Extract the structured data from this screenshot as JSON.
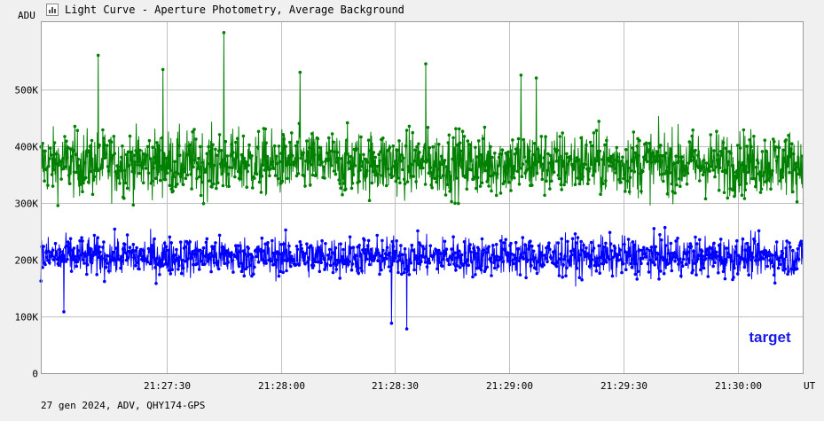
{
  "window": {
    "title": "Light Curve - Aperture Photometry, Average Background"
  },
  "footer": {
    "info": "27 gen 2024, ADV, QHY174-GPS"
  },
  "colors": {
    "background": "#ffffff",
    "grid": "#c0c0c0",
    "series_green": "#008000",
    "series_blue": "#0000ff",
    "label_blue": "#1a1ae6"
  },
  "chart_data": {
    "type": "line",
    "ylabel": "ADU",
    "xlabel": "UT",
    "ylim": [
      0,
      620000
    ],
    "grid": true,
    "yticks": [
      {
        "value": 0,
        "label": "0"
      },
      {
        "value": 100000,
        "label": "100K"
      },
      {
        "value": 200000,
        "label": "200K"
      },
      {
        "value": 300000,
        "label": "300K"
      },
      {
        "value": 400000,
        "label": "400K"
      },
      {
        "value": 500000,
        "label": "500K"
      }
    ],
    "xlim": [
      "21:26:57",
      "21:30:17"
    ],
    "xticks": [
      "21:27:30",
      "21:28:00",
      "21:28:30",
      "21:29:00",
      "21:29:30",
      "21:30:00"
    ],
    "annotation": "target",
    "series": [
      {
        "color": "#008000",
        "typical_range": [
          290000,
          470000
        ],
        "mean": 370000,
        "peaks": [
          {
            "x": "21:27:12",
            "y": 560000
          },
          {
            "x": "21:27:29",
            "y": 535000
          },
          {
            "x": "21:27:45",
            "y": 600000
          },
          {
            "x": "21:28:38",
            "y": 545000
          },
          {
            "x": "21:28:05",
            "y": 530000
          },
          {
            "x": "21:29:03",
            "y": 525000
          },
          {
            "x": "21:29:07",
            "y": 520000
          }
        ]
      },
      {
        "color": "#0000ff",
        "typical_range": [
          150000,
          260000
        ],
        "mean": 205000,
        "troughs": [
          {
            "x": "21:28:33",
            "y": 78000
          },
          {
            "x": "21:28:29",
            "y": 88000
          },
          {
            "x": "21:27:03",
            "y": 108000
          }
        ]
      }
    ]
  }
}
